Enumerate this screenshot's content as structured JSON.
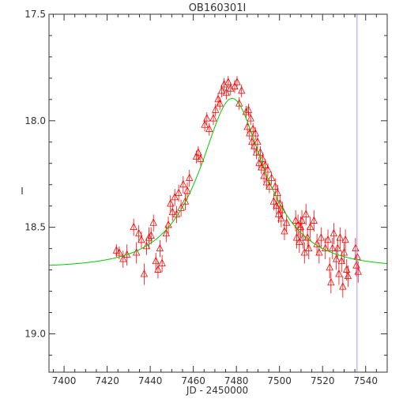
{
  "chart_data": {
    "type": "scatter",
    "title": "OB160301I",
    "xlabel": "JD - 2450000",
    "ylabel": "I",
    "xlim": [
      7393,
      7550
    ],
    "ylim": [
      17.5,
      19.18
    ],
    "y_inverted": true,
    "x_ticks": [
      7400,
      7420,
      7440,
      7460,
      7480,
      7500,
      7520,
      7540
    ],
    "y_ticks": [
      "17.5",
      "18.0",
      "18.5",
      "19.0"
    ],
    "y_tick_values": [
      17.5,
      18.0,
      18.5,
      19.0
    ],
    "vertical_marker_x": 7536,
    "colors": {
      "data": "#ff0000",
      "model": "#00cc00",
      "marker_line": "#9999ff",
      "axes": "#333333"
    },
    "model": {
      "description": "Microlensing fit curve",
      "baseline_mag": 18.69,
      "t0": 7478,
      "tE": 25,
      "u0": 0.53
    },
    "series": [
      {
        "name": "",
        "points": [
          [
            7424.3,
            18.61,
            0.03
          ],
          [
            7425.6,
            18.62,
            0.03
          ],
          [
            7427.4,
            18.65,
            0.04
          ],
          [
            7429.2,
            18.63,
            0.05
          ],
          [
            7432.3,
            18.5,
            0.04
          ],
          [
            7433.6,
            18.62,
            0.05
          ],
          [
            7434.7,
            18.53,
            0.04
          ],
          [
            7435.9,
            18.56,
            0.04
          ],
          [
            7437.2,
            18.72,
            0.05
          ],
          [
            7438.3,
            18.59,
            0.04
          ],
          [
            7439.4,
            18.55,
            0.05
          ],
          [
            7440.4,
            18.54,
            0.04
          ],
          [
            7441.5,
            18.48,
            0.04
          ],
          [
            7442.6,
            18.66,
            0.04
          ],
          [
            7443.6,
            18.7,
            0.04
          ],
          [
            7444.5,
            18.6,
            0.04
          ],
          [
            7445.5,
            18.67,
            0.04
          ],
          [
            7447.4,
            18.53,
            0.04
          ],
          [
            7448.4,
            18.49,
            0.04
          ],
          [
            7449.4,
            18.39,
            0.04
          ],
          [
            7450.3,
            18.43,
            0.04
          ],
          [
            7451.4,
            18.36,
            0.04
          ],
          [
            7452.2,
            18.44,
            0.04
          ],
          [
            7453.2,
            18.34,
            0.04
          ],
          [
            7454.3,
            18.41,
            0.04
          ],
          [
            7455.3,
            18.3,
            0.04
          ],
          [
            7456.3,
            18.38,
            0.04
          ],
          [
            7457.2,
            18.33,
            0.04
          ],
          [
            7458.2,
            18.27,
            0.04
          ],
          [
            7461.4,
            18.17,
            0.03
          ],
          [
            7462.3,
            18.15,
            0.03
          ],
          [
            7463.4,
            18.18,
            0.03
          ],
          [
            7465.3,
            18.02,
            0.03
          ],
          [
            7466.3,
            17.99,
            0.03
          ],
          [
            7467.4,
            18.04,
            0.03
          ],
          [
            7469.3,
            17.99,
            0.03
          ],
          [
            7470.3,
            17.95,
            0.03
          ],
          [
            7471.5,
            17.9,
            0.03
          ],
          [
            7472.3,
            17.92,
            0.03
          ],
          [
            7473.2,
            17.86,
            0.03
          ],
          [
            7474.3,
            17.83,
            0.03
          ],
          [
            7475.3,
            17.87,
            0.03
          ],
          [
            7476.2,
            17.82,
            0.03
          ],
          [
            7477.3,
            17.85,
            0.03
          ],
          [
            7479.2,
            17.84,
            0.03
          ],
          [
            7480.3,
            17.82,
            0.03
          ],
          [
            7481.3,
            17.92,
            0.03
          ],
          [
            7482.4,
            17.86,
            0.03
          ],
          [
            7484.5,
            17.96,
            0.03
          ],
          [
            7485.1,
            18.03,
            0.03
          ],
          [
            7485.6,
            17.95,
            0.03
          ],
          [
            7486.1,
            18.06,
            0.03
          ],
          [
            7486.6,
            17.99,
            0.03
          ],
          [
            7487.2,
            18.1,
            0.03
          ],
          [
            7487.7,
            18.04,
            0.03
          ],
          [
            7488.3,
            18.12,
            0.03
          ],
          [
            7488.8,
            18.06,
            0.03
          ],
          [
            7489.3,
            18.15,
            0.03
          ],
          [
            7489.8,
            18.1,
            0.03
          ],
          [
            7490.5,
            18.2,
            0.03
          ],
          [
            7491.1,
            18.15,
            0.03
          ],
          [
            7491.6,
            18.22,
            0.03
          ],
          [
            7492.2,
            18.18,
            0.03
          ],
          [
            7492.8,
            18.26,
            0.03
          ],
          [
            7493.4,
            18.21,
            0.03
          ],
          [
            7494.0,
            18.29,
            0.03
          ],
          [
            7494.6,
            18.23,
            0.03
          ],
          [
            7495.3,
            18.31,
            0.03
          ],
          [
            7496.3,
            18.27,
            0.03
          ],
          [
            7497.3,
            18.38,
            0.04
          ],
          [
            7498.0,
            18.31,
            0.04
          ],
          [
            7498.6,
            18.4,
            0.04
          ],
          [
            7499.1,
            18.34,
            0.04
          ],
          [
            7499.6,
            18.44,
            0.04
          ],
          [
            7500.2,
            18.39,
            0.04
          ],
          [
            7500.8,
            18.46,
            0.04
          ],
          [
            7501.3,
            18.42,
            0.04
          ],
          [
            7502.3,
            18.52,
            0.04
          ],
          [
            7503.3,
            18.48,
            0.04
          ],
          [
            7507.5,
            18.47,
            0.05
          ],
          [
            7508.0,
            18.55,
            0.05
          ],
          [
            7508.6,
            18.49,
            0.05
          ],
          [
            7509.2,
            18.57,
            0.05
          ],
          [
            7509.8,
            18.5,
            0.05
          ],
          [
            7510.4,
            18.47,
            0.05
          ],
          [
            7511.0,
            18.55,
            0.05
          ],
          [
            7511.6,
            18.62,
            0.05
          ],
          [
            7512.3,
            18.44,
            0.05
          ],
          [
            7513.0,
            18.55,
            0.05
          ],
          [
            7513.6,
            18.6,
            0.05
          ],
          [
            7514.3,
            18.5,
            0.05
          ],
          [
            7516.0,
            18.47,
            0.05
          ],
          [
            7517.4,
            18.58,
            0.05
          ],
          [
            7518.4,
            18.62,
            0.05
          ],
          [
            7519.3,
            18.55,
            0.05
          ],
          [
            7521.3,
            18.6,
            0.05
          ],
          [
            7522.5,
            18.56,
            0.05
          ],
          [
            7523.3,
            18.69,
            0.05
          ],
          [
            7523.9,
            18.76,
            0.05
          ],
          [
            7524.6,
            18.6,
            0.05
          ],
          [
            7525.2,
            18.53,
            0.05
          ],
          [
            7526.4,
            18.65,
            0.05
          ],
          [
            7527.0,
            18.6,
            0.05
          ],
          [
            7527.6,
            18.72,
            0.05
          ],
          [
            7528.1,
            18.55,
            0.05
          ],
          [
            7528.8,
            18.66,
            0.05
          ],
          [
            7529.4,
            18.78,
            0.05
          ],
          [
            7530.0,
            18.62,
            0.05
          ],
          [
            7530.6,
            18.56,
            0.05
          ],
          [
            7531.2,
            18.7,
            0.05
          ],
          [
            7531.8,
            18.73,
            0.05
          ],
          [
            7535.3,
            18.6,
            0.05
          ],
          [
            7535.7,
            18.68,
            0.05
          ],
          [
            7536.1,
            18.64,
            0.05
          ],
          [
            7536.5,
            18.71,
            0.05
          ]
        ]
      }
    ]
  }
}
